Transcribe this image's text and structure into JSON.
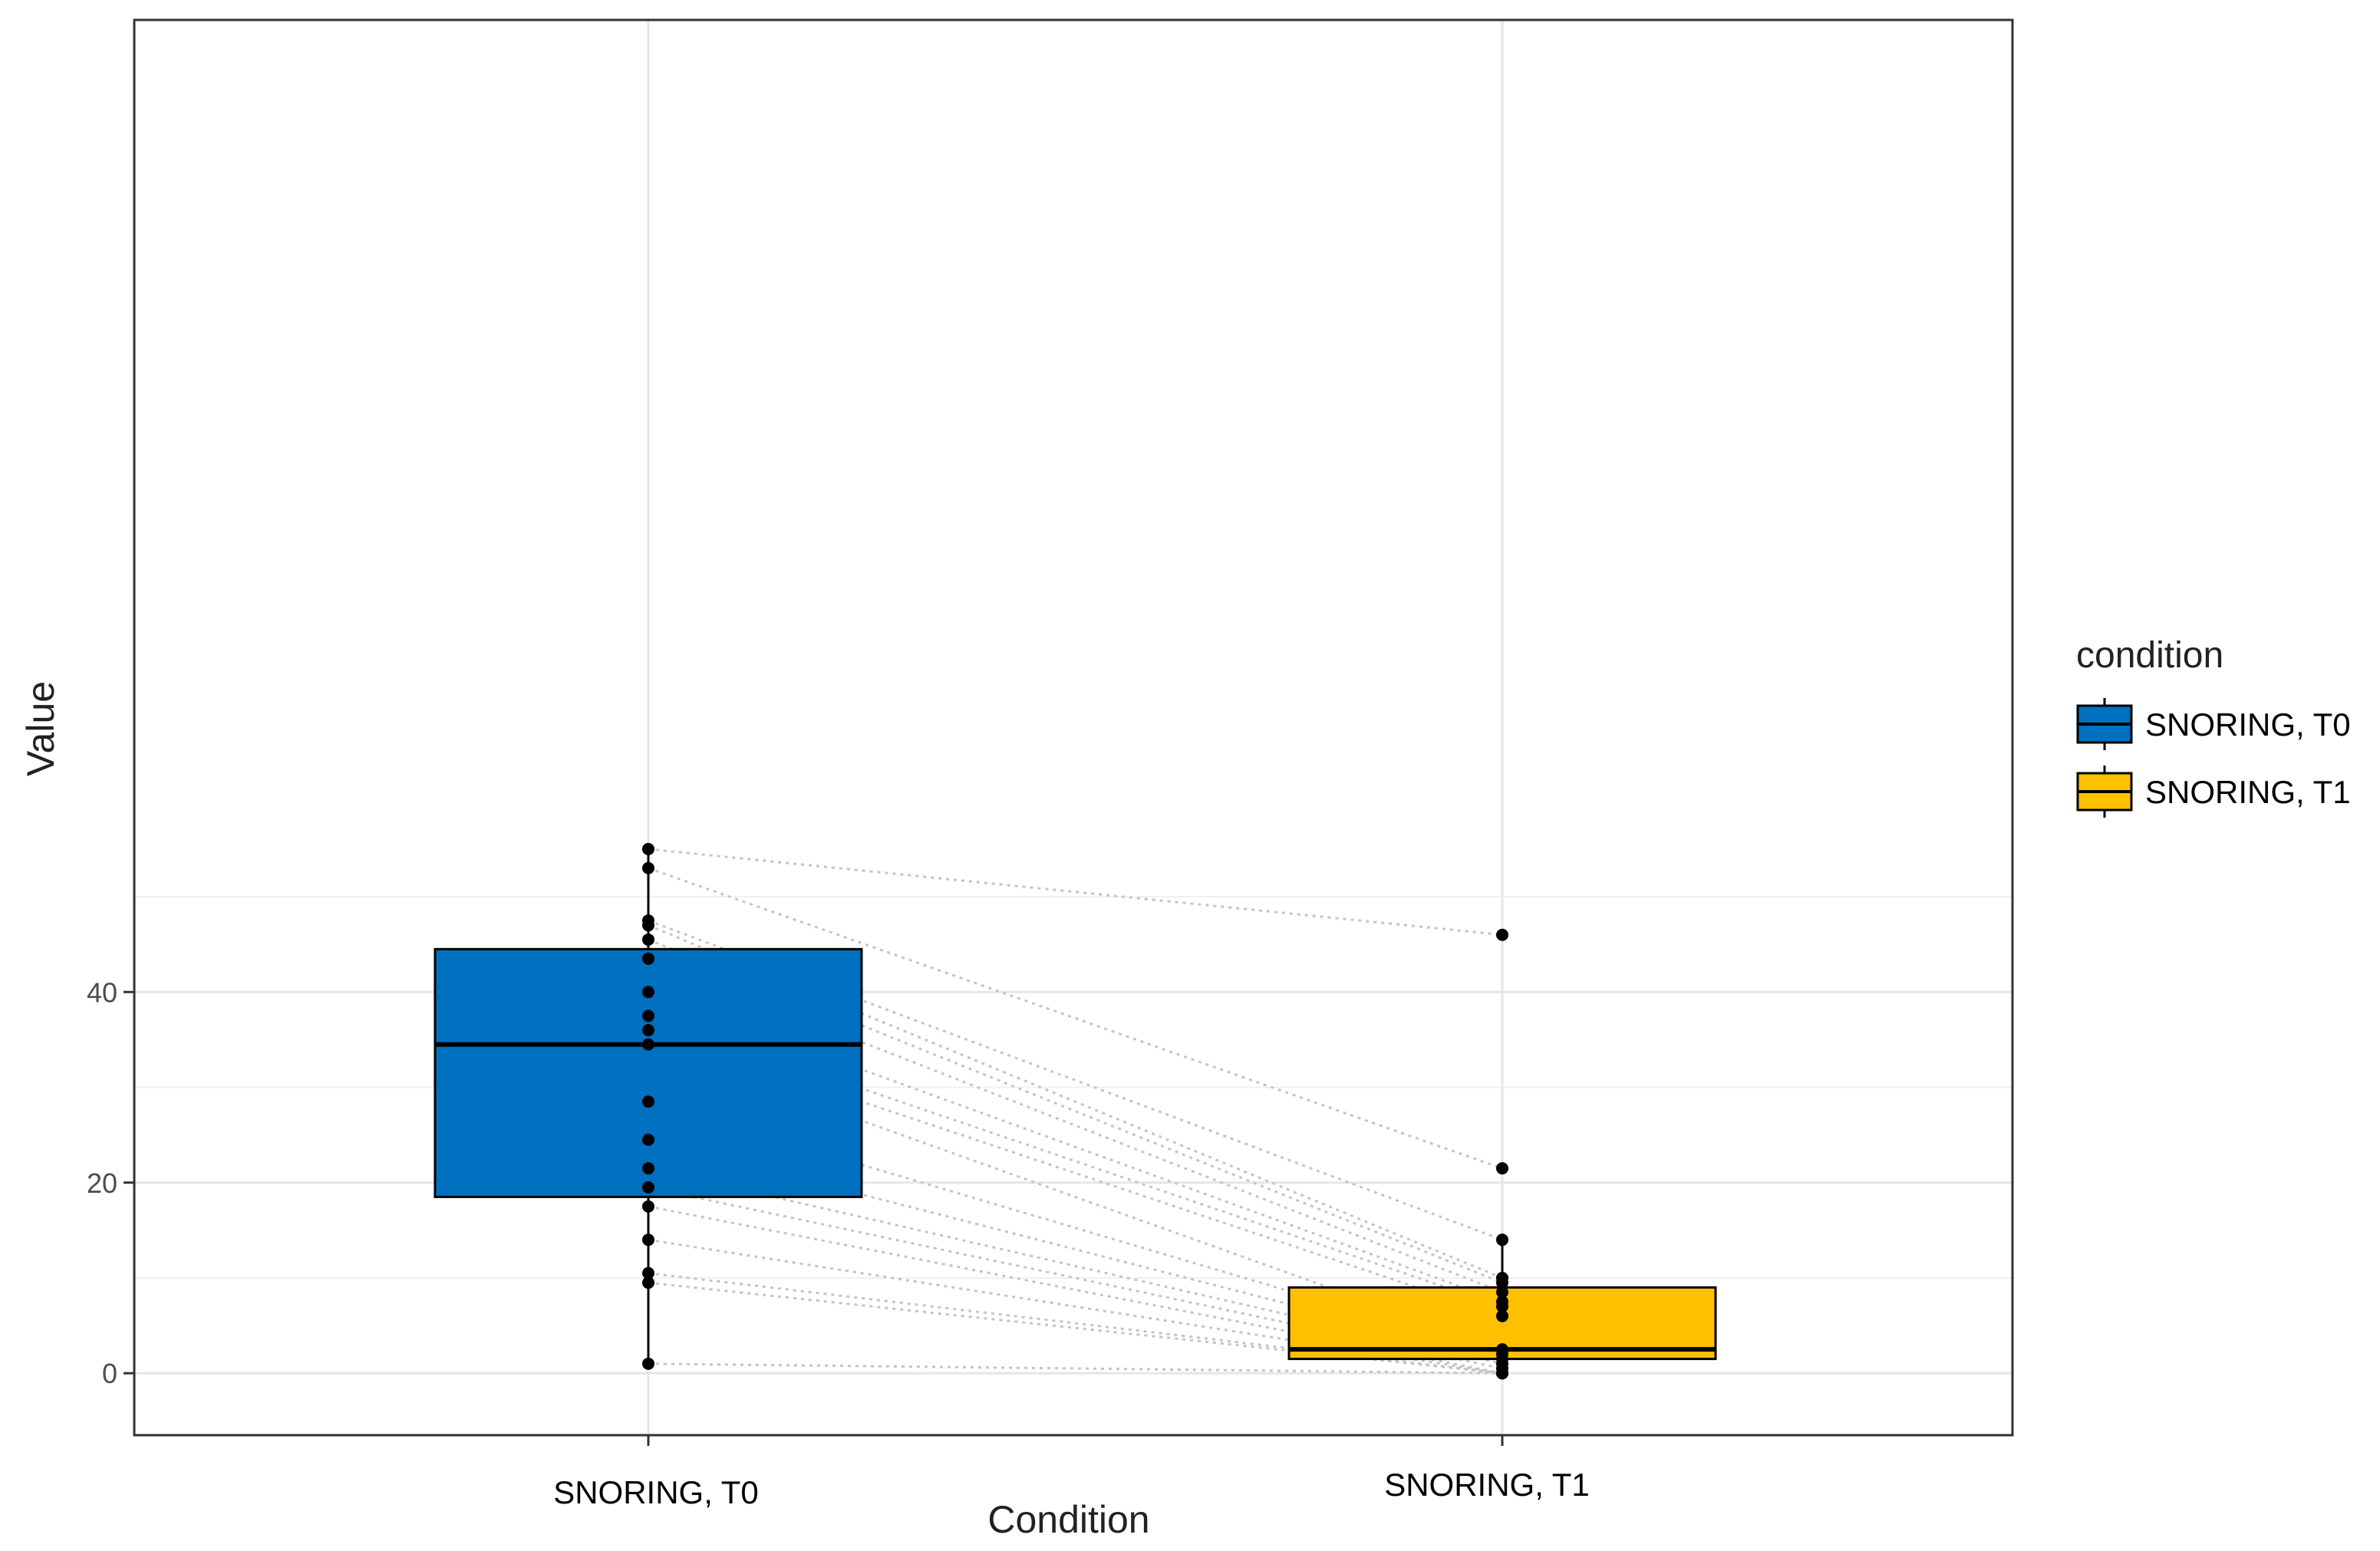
{
  "chart_data": {
    "type": "box",
    "title": "",
    "xlabel": "Condition",
    "ylabel": "Value",
    "ylim": [
      -6.5,
      142
    ],
    "yticks": [
      0,
      20,
      40
    ],
    "grid": true,
    "legend_title": "condition",
    "legend_position": "right",
    "categories": [
      "SNORING, T0",
      "SNORING, T1"
    ],
    "series": [
      {
        "name": "SNORING, T0",
        "color": "#0070C0",
        "box": {
          "q1": 18.5,
          "median": 34.5,
          "q3": 44.5,
          "whisker_low": 1,
          "whisker_high": 55
        },
        "points": [
          55,
          53,
          47.5,
          47,
          45.5,
          43.5,
          40,
          37.5,
          36,
          34.5,
          28.5,
          24.5,
          21.5,
          19.5,
          17.5,
          14,
          10.5,
          9.5,
          1
        ]
      },
      {
        "name": "SNORING, T1",
        "color": "#FFC000",
        "box": {
          "q1": 1.5,
          "median": 2.5,
          "q3": 9,
          "whisker_low": 0,
          "whisker_high": 14
        },
        "points": [
          46,
          21.5,
          14,
          10,
          9.5,
          8.5,
          7.5,
          7,
          6,
          2.5,
          2,
          1.5,
          1,
          0.5,
          0,
          0,
          0,
          0,
          0
        ]
      }
    ]
  }
}
